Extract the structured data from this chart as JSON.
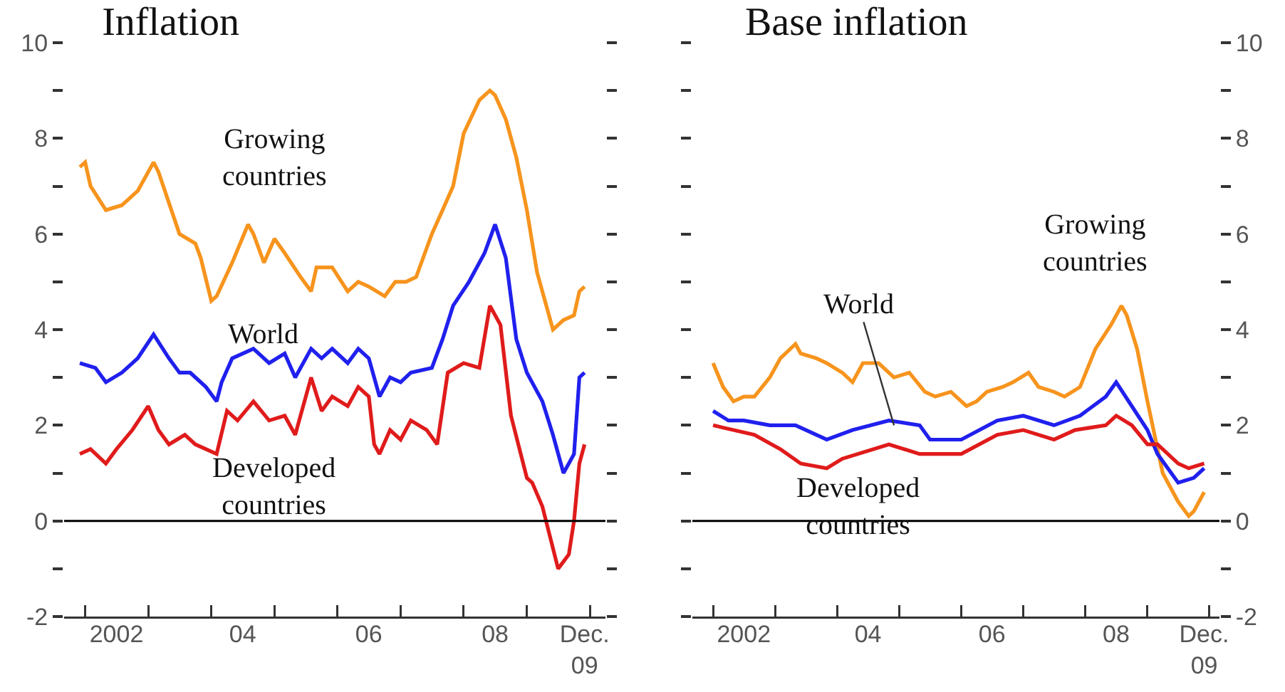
{
  "chart_data": [
    {
      "type": "line",
      "title": "Inflation",
      "xlim": [
        "2001-09",
        "2010-04"
      ],
      "ylim": [
        -2,
        10
      ],
      "xticks": [
        {
          "value": "2002-01",
          "label": null
        },
        {
          "value": "2003-01",
          "label": null
        },
        {
          "value": "2004-01",
          "label": null
        },
        {
          "value": "2005-01",
          "label": null
        },
        {
          "value": "2006-01",
          "label": null
        },
        {
          "value": "2007-01",
          "label": null
        },
        {
          "value": "2008-01",
          "label": null
        },
        {
          "value": "2009-01",
          "label": null
        },
        {
          "value": "2010-01",
          "label": null
        },
        {
          "value": "2002-07",
          "label": "2002"
        },
        {
          "value": "2004-07",
          "label": "04"
        },
        {
          "value": "2006-07",
          "label": "06"
        },
        {
          "value": "2008-07",
          "label": "08"
        },
        {
          "value": "2009-12",
          "label": "Dec.\n09"
        }
      ],
      "yticks": [
        -2,
        {
          "value": -1,
          "label": null
        },
        0,
        {
          "value": 1,
          "label": null
        },
        2,
        {
          "value": 3,
          "label": null
        },
        4,
        {
          "value": 5,
          "label": null
        },
        6,
        {
          "value": 7,
          "label": null
        },
        8,
        {
          "value": 9,
          "label": null
        },
        10
      ],
      "ref_lines": [
        {
          "axis": "y",
          "value": 0,
          "color": "#000000"
        }
      ],
      "series": [
        {
          "name": "Growing countries",
          "color": "#f7941d",
          "x": [
            "2001-12",
            "2002-01",
            "2002-02",
            "2002-05",
            "2002-08",
            "2002-11",
            "2003-02",
            "2003-03",
            "2003-07",
            "2003-10",
            "2003-11",
            "2004-01",
            "2004-02",
            "2004-05",
            "2004-08",
            "2004-09",
            "2004-11",
            "2005-01",
            "2005-03",
            "2005-06",
            "2005-08",
            "2005-09",
            "2005-12",
            "2006-03",
            "2006-05",
            "2006-07",
            "2006-10",
            "2006-12",
            "2007-02",
            "2007-04",
            "2007-07",
            "2007-09",
            "2007-11",
            "2008-01",
            "2008-04",
            "2008-06",
            "2008-07",
            "2008-09",
            "2008-11",
            "2009-01",
            "2009-03",
            "2009-06",
            "2009-08",
            "2009-10",
            "2009-11",
            "2009-12"
          ],
          "values": [
            7.4,
            7.5,
            7.0,
            6.5,
            6.6,
            6.9,
            7.5,
            7.3,
            6.0,
            5.8,
            5.5,
            4.6,
            4.7,
            5.4,
            6.2,
            6.0,
            5.4,
            5.9,
            5.6,
            5.1,
            4.8,
            5.3,
            5.3,
            4.8,
            5.0,
            4.9,
            4.7,
            5.0,
            5.0,
            5.1,
            6.0,
            6.5,
            7.0,
            8.1,
            8.8,
            9.0,
            8.9,
            8.4,
            7.6,
            6.5,
            5.2,
            4.0,
            4.2,
            4.3,
            4.8,
            4.9
          ]
        },
        {
          "name": "World",
          "color": "#2020ee",
          "x": [
            "2001-12",
            "2002-03",
            "2002-05",
            "2002-08",
            "2002-11",
            "2003-02",
            "2003-05",
            "2003-07",
            "2003-09",
            "2003-12",
            "2004-02",
            "2004-03",
            "2004-05",
            "2004-09",
            "2004-12",
            "2005-03",
            "2005-05",
            "2005-08",
            "2005-10",
            "2005-12",
            "2006-03",
            "2006-05",
            "2006-07",
            "2006-09",
            "2006-11",
            "2007-01",
            "2007-03",
            "2007-07",
            "2007-09",
            "2007-11",
            "2008-02",
            "2008-05",
            "2008-07",
            "2008-09",
            "2008-11",
            "2009-01",
            "2009-04",
            "2009-06",
            "2009-08",
            "2009-09",
            "2009-10",
            "2009-11",
            "2009-12"
          ],
          "values": [
            3.3,
            3.2,
            2.9,
            3.1,
            3.4,
            3.9,
            3.4,
            3.1,
            3.1,
            2.8,
            2.5,
            2.9,
            3.4,
            3.6,
            3.3,
            3.5,
            3.0,
            3.6,
            3.4,
            3.6,
            3.3,
            3.6,
            3.4,
            2.6,
            3.0,
            2.9,
            3.1,
            3.2,
            3.8,
            4.5,
            5.0,
            5.6,
            6.2,
            5.5,
            3.8,
            3.1,
            2.5,
            1.8,
            1.0,
            1.2,
            1.4,
            3.0,
            3.1
          ]
        },
        {
          "name": "Developed countries",
          "color": "#e01b1b",
          "x": [
            "2001-12",
            "2002-02",
            "2002-05",
            "2002-07",
            "2002-10",
            "2003-01",
            "2003-03",
            "2003-05",
            "2003-08",
            "2003-10",
            "2004-02",
            "2004-04",
            "2004-06",
            "2004-09",
            "2004-12",
            "2005-03",
            "2005-05",
            "2005-08",
            "2005-10",
            "2005-12",
            "2006-03",
            "2006-05",
            "2006-07",
            "2006-08",
            "2006-09",
            "2006-11",
            "2007-01",
            "2007-03",
            "2007-06",
            "2007-08",
            "2007-10",
            "2008-01",
            "2008-04",
            "2008-06",
            "2008-08",
            "2008-10",
            "2009-01",
            "2009-02",
            "2009-04",
            "2009-07",
            "2009-09",
            "2009-10",
            "2009-11",
            "2009-12"
          ],
          "values": [
            1.4,
            1.5,
            1.2,
            1.5,
            1.9,
            2.4,
            1.9,
            1.6,
            1.8,
            1.6,
            1.4,
            2.3,
            2.1,
            2.5,
            2.1,
            2.2,
            1.8,
            3.0,
            2.3,
            2.6,
            2.4,
            2.8,
            2.6,
            1.6,
            1.4,
            1.9,
            1.7,
            2.1,
            1.9,
            1.6,
            3.1,
            3.3,
            3.2,
            4.5,
            4.1,
            2.2,
            0.9,
            0.8,
            0.3,
            -1.0,
            -0.7,
            0.0,
            1.2,
            1.6
          ]
        }
      ]
    },
    {
      "type": "line",
      "title": "Base inflation",
      "xlim": [
        "2001-09",
        "2010-03"
      ],
      "ylim": [
        -2,
        10
      ],
      "xticks": [
        {
          "value": "2002-01",
          "label": null
        },
        {
          "value": "2003-01",
          "label": null
        },
        {
          "value": "2004-01",
          "label": null
        },
        {
          "value": "2005-01",
          "label": null
        },
        {
          "value": "2006-01",
          "label": null
        },
        {
          "value": "2007-01",
          "label": null
        },
        {
          "value": "2008-01",
          "label": null
        },
        {
          "value": "2009-01",
          "label": null
        },
        {
          "value": "2010-01",
          "label": null
        },
        {
          "value": "2002-07",
          "label": "2002"
        },
        {
          "value": "2004-07",
          "label": "04"
        },
        {
          "value": "2006-07",
          "label": "06"
        },
        {
          "value": "2008-07",
          "label": "08"
        },
        {
          "value": "2009-12",
          "label": "Dec.\n09"
        }
      ],
      "yticks": [
        -2,
        {
          "value": -1,
          "label": null
        },
        0,
        {
          "value": 1,
          "label": null
        },
        2,
        {
          "value": 3,
          "label": null
        },
        4,
        {
          "value": 5,
          "label": null
        },
        6,
        {
          "value": 7,
          "label": null
        },
        8,
        {
          "value": 9,
          "label": null
        },
        10
      ],
      "ref_lines": [
        {
          "axis": "y",
          "value": 0,
          "color": "#000000"
        }
      ],
      "series": [
        {
          "name": "Growing countries",
          "color": "#f7941d",
          "x": [
            "2002-01",
            "2002-03",
            "2002-05",
            "2002-07",
            "2002-09",
            "2002-12",
            "2003-02",
            "2003-05",
            "2003-06",
            "2003-09",
            "2003-11",
            "2004-02",
            "2004-04",
            "2004-06",
            "2004-09",
            "2004-12",
            "2005-03",
            "2005-06",
            "2005-08",
            "2005-11",
            "2006-02",
            "2006-04",
            "2006-06",
            "2006-09",
            "2006-11",
            "2007-02",
            "2007-04",
            "2007-07",
            "2007-09",
            "2007-12",
            "2008-03",
            "2008-06",
            "2008-08",
            "2008-09",
            "2008-11",
            "2009-01",
            "2009-04",
            "2009-07",
            "2009-09",
            "2009-10",
            "2009-12"
          ],
          "values": [
            3.3,
            2.8,
            2.5,
            2.6,
            2.6,
            3.0,
            3.4,
            3.7,
            3.5,
            3.4,
            3.3,
            3.1,
            2.9,
            3.3,
            3.3,
            3.0,
            3.1,
            2.7,
            2.6,
            2.7,
            2.4,
            2.5,
            2.7,
            2.8,
            2.9,
            3.1,
            2.8,
            2.7,
            2.6,
            2.8,
            3.6,
            4.1,
            4.5,
            4.3,
            3.6,
            2.5,
            1.0,
            0.4,
            0.1,
            0.2,
            0.6
          ]
        },
        {
          "name": "World",
          "color": "#2020ee",
          "x": [
            "2002-01",
            "2002-04",
            "2002-07",
            "2002-12",
            "2003-05",
            "2003-11",
            "2004-04",
            "2004-11",
            "2005-05",
            "2005-07",
            "2006-01",
            "2006-08",
            "2007-01",
            "2007-07",
            "2007-12",
            "2008-05",
            "2008-07",
            "2008-10",
            "2009-01",
            "2009-03",
            "2009-07",
            "2009-10",
            "2009-12"
          ],
          "values": [
            2.3,
            2.1,
            2.1,
            2.0,
            2.0,
            1.7,
            1.9,
            2.1,
            2.0,
            1.7,
            1.7,
            2.1,
            2.2,
            2.0,
            2.2,
            2.6,
            2.9,
            2.4,
            1.9,
            1.4,
            0.8,
            0.9,
            1.1
          ]
        },
        {
          "name": "Developed countries",
          "color": "#e01b1b",
          "x": [
            "2002-01",
            "2002-05",
            "2002-09",
            "2003-02",
            "2003-06",
            "2003-11",
            "2004-02",
            "2004-11",
            "2005-05",
            "2006-01",
            "2006-08",
            "2007-01",
            "2007-07",
            "2007-11",
            "2008-05",
            "2008-07",
            "2008-10",
            "2009-01",
            "2009-03",
            "2009-07",
            "2009-09",
            "2009-12"
          ],
          "values": [
            2.0,
            1.9,
            1.8,
            1.5,
            1.2,
            1.1,
            1.3,
            1.6,
            1.4,
            1.4,
            1.8,
            1.9,
            1.7,
            1.9,
            2.0,
            2.2,
            2.0,
            1.6,
            1.6,
            1.2,
            1.1,
            1.2
          ]
        }
      ]
    }
  ]
}
